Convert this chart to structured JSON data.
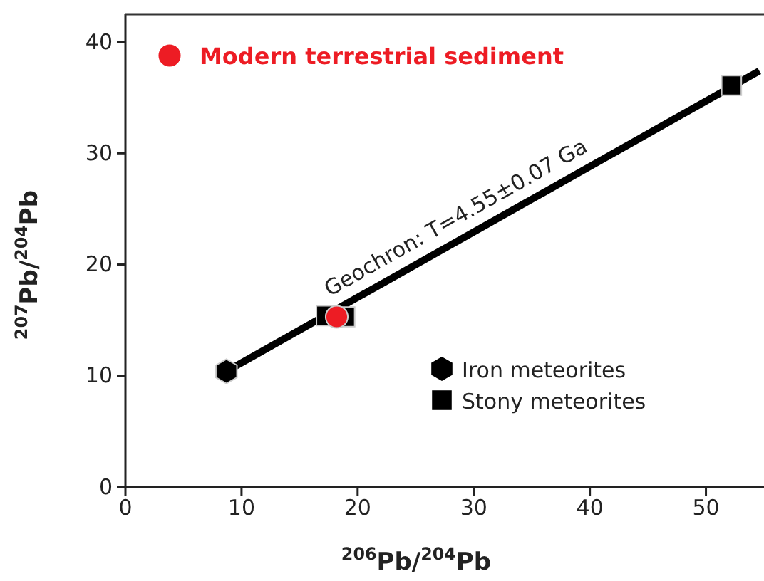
{
  "chart_data": {
    "type": "scatter",
    "xlabel": "$^{206}$Pb/$^{204}$Pb",
    "ylabel": "$^{207}$Pb/$^{204}$Pb",
    "xlim": [
      0,
      55
    ],
    "ylim": [
      0,
      42.5
    ],
    "xticks": [
      0,
      10,
      20,
      30,
      40,
      50
    ],
    "yticks": [
      0,
      10,
      20,
      30,
      40
    ],
    "grid": false,
    "legend": "top left",
    "series": [
      {
        "type": "line",
        "color": "#000000",
        "x": [
          8.7,
          54.6
        ],
        "values": [
          10.4,
          37.4
        ],
        "marker": "none",
        "line_style": "solid"
      },
      {
        "name": "Iron meteorites",
        "color": "#000000",
        "x": [
          8.7
        ],
        "values": [
          10.4
        ]
      },
      {
        "name": "Stony meteorites",
        "color": "#000000",
        "marker": "square",
        "x": [
          17.3,
          18.9,
          52.2
        ],
        "values": [
          15.4,
          15.3,
          36.1
        ]
      },
      {
        "name": "Modern terrestrial sediment",
        "color": "#ed1c24",
        "marker": "circle",
        "x": [
          18.2
        ],
        "values": [
          15.3
        ]
      }
    ],
    "annotations": [
      "Geochron: T=4.55±0.07 Ga"
    ]
  }
}
